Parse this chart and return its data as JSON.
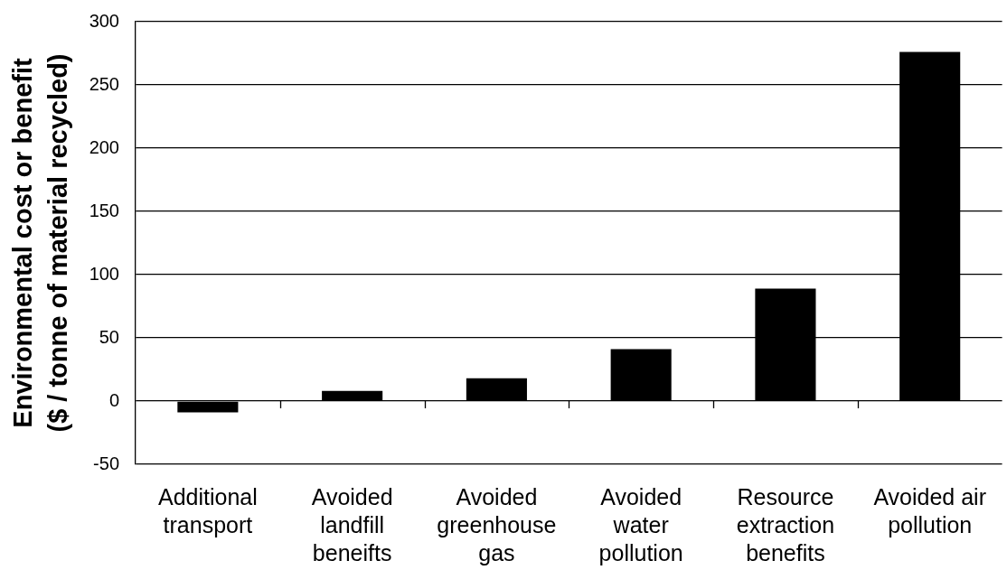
{
  "chart_data": {
    "type": "bar",
    "ylabel": "Environmental cost or benefit\n($ / tonne of material recycled)",
    "categories": [
      "Additional transport",
      "Avoided landfill beneifts",
      "Avoided greenhouse gas",
      "Avoided water pollution",
      "Resource extraction benefits",
      "Avoided air pollution"
    ],
    "values": [
      -9,
      8,
      18,
      41,
      89,
      276
    ],
    "color": "#000000",
    "ylim": [
      -50,
      300
    ],
    "yticks": [
      -50,
      0,
      50,
      100,
      150,
      200,
      250,
      300
    ],
    "grid": "y"
  }
}
